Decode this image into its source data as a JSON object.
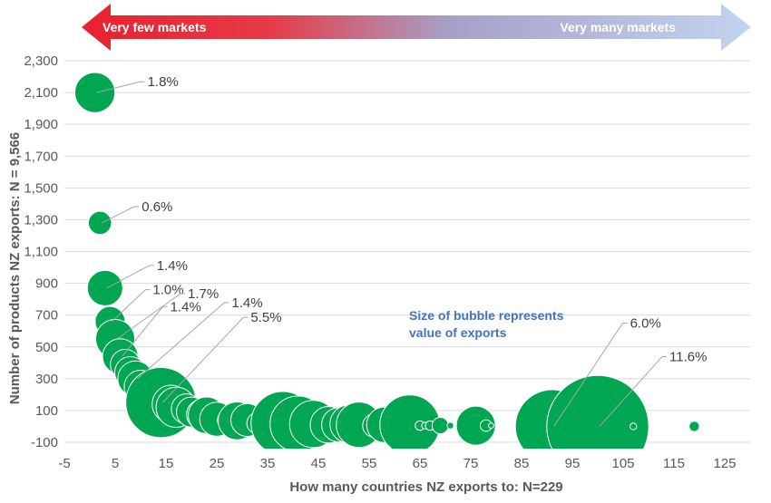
{
  "chart_data": {
    "type": "bubble",
    "title": "",
    "xlabel": "How many countries NZ exports to: N=229",
    "ylabel": "Number of products NZ exports: N = 9,566",
    "xlim": [
      -5,
      125
    ],
    "ylim": [
      -100,
      2300
    ],
    "x_ticks": [
      "-5",
      "5",
      "15",
      "25",
      "35",
      "45",
      "55",
      "65",
      "75",
      "85",
      "95",
      "105",
      "115",
      "125"
    ],
    "y_ticks": [
      "-100",
      "100",
      "300",
      "500",
      "700",
      "900",
      "1,100",
      "1,300",
      "1,500",
      "1,700",
      "1,900",
      "2,100",
      "2,300"
    ],
    "grid": true,
    "bubble_color": "#00a651",
    "arrow": {
      "left_label": "Very few markets",
      "right_label": "Very many markets",
      "left_color": "#e8212e",
      "right_color": "#b4c7e7"
    },
    "note": [
      "Size of bubble represents",
      "value of exports"
    ],
    "points": [
      {
        "x": 1,
        "y": 2100,
        "share": 1.8,
        "label": "1.8%"
      },
      {
        "x": 2,
        "y": 1280,
        "share": 0.6,
        "label": "0.6%"
      },
      {
        "x": 3,
        "y": 870,
        "share": 1.4,
        "label": "1.4%"
      },
      {
        "x": 4,
        "y": 660,
        "share": 1.0,
        "label": "1.0%"
      },
      {
        "x": 5,
        "y": 550,
        "share": 1.7,
        "label": "1.7%"
      },
      {
        "x": 6,
        "y": 440,
        "share": 1.4,
        "label": "1.4%"
      },
      {
        "x": 7,
        "y": 390,
        "share": 1.0
      },
      {
        "x": 8,
        "y": 340,
        "share": 1.1
      },
      {
        "x": 9,
        "y": 300,
        "share": 1.4,
        "label": "1.4%"
      },
      {
        "x": 10,
        "y": 250,
        "share": 1.2
      },
      {
        "x": 11,
        "y": 220,
        "share": 1.2
      },
      {
        "x": 12,
        "y": 190,
        "share": 1.3
      },
      {
        "x": 13,
        "y": 170,
        "share": 1.5
      },
      {
        "x": 14,
        "y": 150,
        "share": 5.5,
        "label": "5.5%"
      },
      {
        "x": 16,
        "y": 140,
        "share": 1.6
      },
      {
        "x": 17,
        "y": 120,
        "share": 1.8
      },
      {
        "x": 19,
        "y": 110,
        "share": 1.0
      },
      {
        "x": 20,
        "y": 90,
        "share": 1.0
      },
      {
        "x": 22,
        "y": 75,
        "share": 1.0
      },
      {
        "x": 23,
        "y": 70,
        "share": 1.5
      },
      {
        "x": 25,
        "y": 45,
        "share": 1.3
      },
      {
        "x": 27,
        "y": 40,
        "share": 0.4
      },
      {
        "x": 29,
        "y": 35,
        "share": 1.6
      },
      {
        "x": 31,
        "y": 40,
        "share": 1.2
      },
      {
        "x": 33,
        "y": 20,
        "share": 0.5
      },
      {
        "x": 36,
        "y": 30,
        "share": 0.9
      },
      {
        "x": 38,
        "y": 20,
        "share": 4.5
      },
      {
        "x": 41,
        "y": 15,
        "share": 3.5
      },
      {
        "x": 44,
        "y": 15,
        "share": 2.5
      },
      {
        "x": 47,
        "y": 10,
        "share": 1.5
      },
      {
        "x": 49,
        "y": 10,
        "share": 1.3
      },
      {
        "x": 51,
        "y": 15,
        "share": 1.6
      },
      {
        "x": 53,
        "y": 10,
        "share": 2.3
      },
      {
        "x": 56,
        "y": 5,
        "share": 0.6
      },
      {
        "x": 58,
        "y": 10,
        "share": 1.4
      },
      {
        "x": 60,
        "y": 5,
        "share": 0.8
      },
      {
        "x": 63,
        "y": 10,
        "share": 4.0
      },
      {
        "x": 65,
        "y": 5,
        "share": 0.1
      },
      {
        "x": 66,
        "y": 5,
        "share": 0.05
      },
      {
        "x": 67,
        "y": 5,
        "share": 0.1
      },
      {
        "x": 69,
        "y": 5,
        "share": 0.3
      },
      {
        "x": 71,
        "y": 5,
        "share": 0.05
      },
      {
        "x": 76,
        "y": 5,
        "share": 1.7
      },
      {
        "x": 78,
        "y": 5,
        "share": 0.15
      },
      {
        "x": 79,
        "y": 5,
        "share": 0.03
      },
      {
        "x": 91,
        "y": 0,
        "share": 6.0,
        "label": "6.0%"
      },
      {
        "x": 100,
        "y": 0,
        "share": 11.6,
        "label": "11.6%"
      },
      {
        "x": 107,
        "y": 0,
        "share": 0.05
      },
      {
        "x": 119,
        "y": 0,
        "share": 0.12
      }
    ]
  }
}
